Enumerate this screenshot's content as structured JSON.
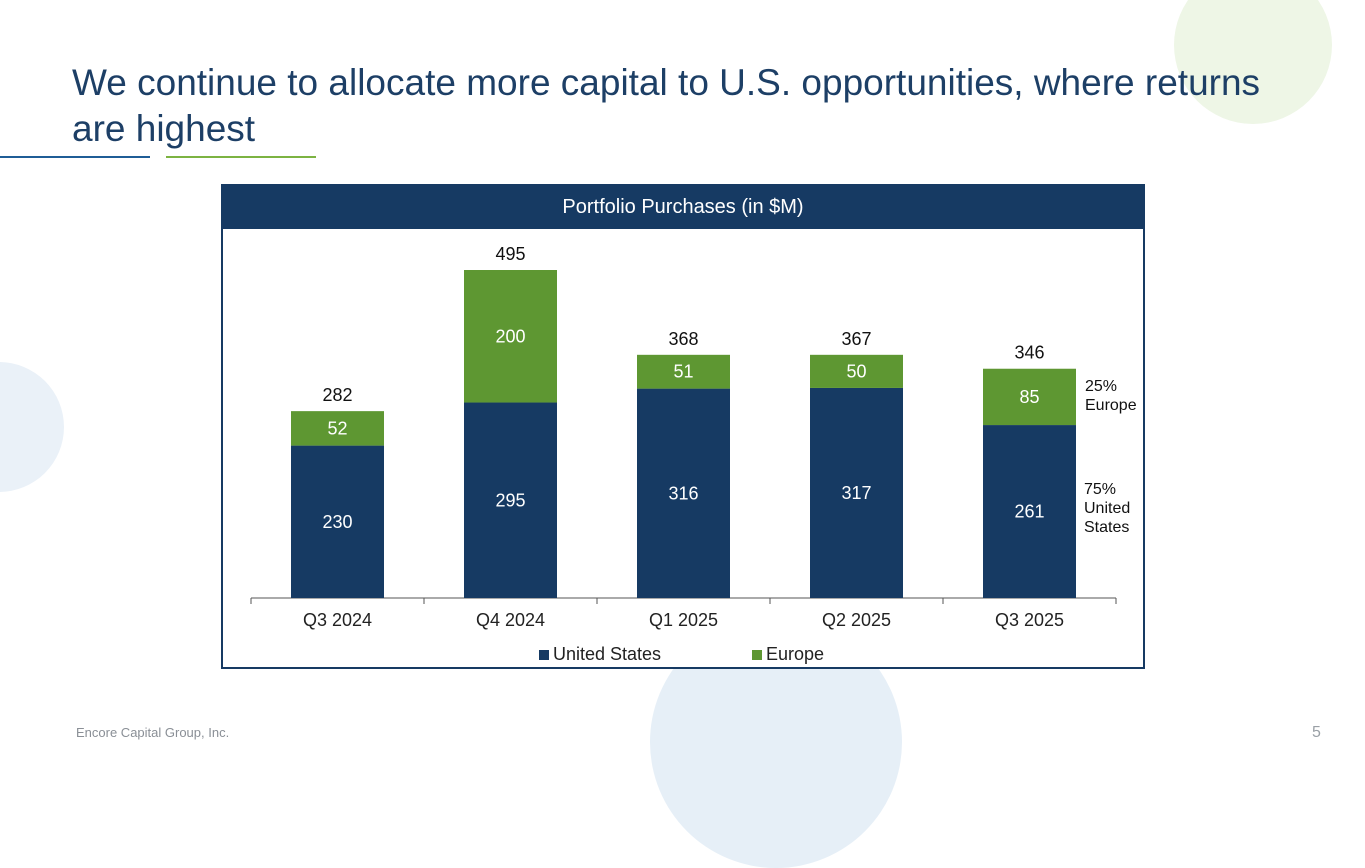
{
  "slide": {
    "title": "We continue to allocate more capital to U.S. opportunities, where returns are highest",
    "footer": "Encore Capital Group, Inc.",
    "page_number": "5"
  },
  "colors": {
    "title": "#1d3f66",
    "united_states": "#163a63",
    "europe": "#5e9732",
    "header_bg": "#163a63"
  },
  "chart_data": {
    "type": "bar",
    "stacked": true,
    "title": "Portfolio Purchases (in $M)",
    "categories": [
      "Q3 2024",
      "Q4 2024",
      "Q1 2025",
      "Q2 2025",
      "Q3 2025"
    ],
    "series": [
      {
        "name": "United States",
        "values": [
          230,
          295,
          316,
          317,
          261
        ]
      },
      {
        "name": "Europe",
        "values": [
          52,
          200,
          51,
          50,
          85
        ]
      }
    ],
    "totals": [
      282,
      495,
      368,
      367,
      346
    ],
    "ylim": [
      0,
      495
    ],
    "xlabel": "",
    "ylabel": "",
    "legend_position": "bottom",
    "annotations": {
      "europe_share": "25%\nEurope",
      "us_share": "75%\nUnited\nStates"
    }
  }
}
